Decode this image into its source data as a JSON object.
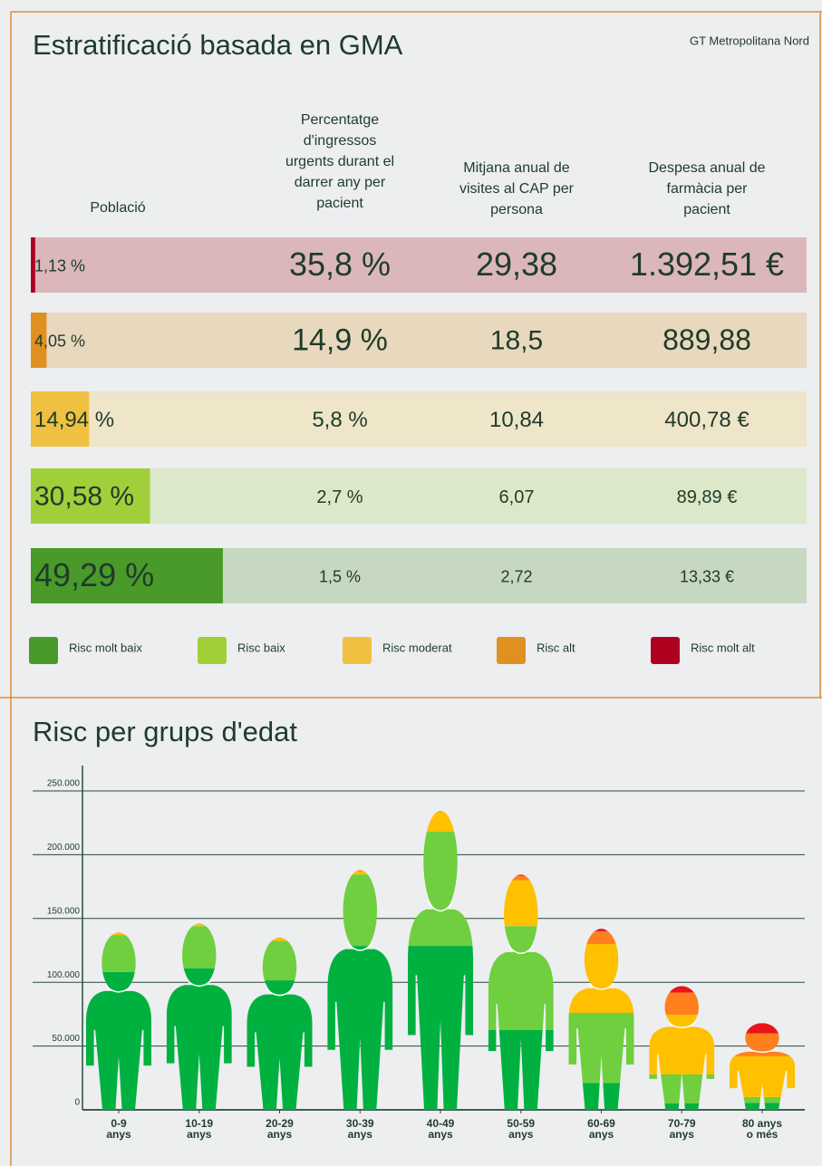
{
  "stratification": {
    "title": "Estratificació basada en GMA",
    "region": "GT Metropolitana Nord",
    "headers": {
      "population": [
        "Població"
      ],
      "urgent": [
        "Percentatge",
        "d'ingressos",
        "urgents durant el",
        "darrer any per",
        "pacient"
      ],
      "visits": [
        "Mitjana anual de",
        "visites al CAP per",
        "persona"
      ],
      "pharmacy": [
        "Despesa anual de",
        "farmàcia per",
        "pacient"
      ]
    },
    "rows": [
      {
        "population": {
          "value": 1.13,
          "label": "1,13 %"
        },
        "color": "#b00020",
        "background": "#dbb7bc",
        "urgent": "35,8 %",
        "visits": "29,38",
        "pharmacy": "1.392,51 €"
      },
      {
        "population": {
          "value": 4.05,
          "label": "4,05 %"
        },
        "color": "#e09020",
        "background": "#e8d8bd",
        "urgent": "14,9 %",
        "visits": "18,5",
        "pharmacy": "889,88"
      },
      {
        "population": {
          "value": 14.94,
          "label": "14,94 %"
        },
        "color": "#f0c040",
        "background": "#efe5c8",
        "urgent": "5,8 %",
        "visits": "10,84",
        "pharmacy": "400,78 €"
      },
      {
        "population": {
          "value": 30.58,
          "label": "30,58 %"
        },
        "color": "#a0cf3a",
        "background": "#dbe8ca",
        "urgent": "2,7 %",
        "visits": "6,07",
        "pharmacy": "89,89 €"
      },
      {
        "population": {
          "value": 49.29,
          "label": "49,29 %"
        },
        "color": "#4a9a2a",
        "background": "#c6d9c0",
        "urgent": "1,5 %",
        "visits": "2,72",
        "pharmacy": "13,33 €"
      }
    ],
    "legend": [
      {
        "name": "Risc molt baix",
        "color": "#4a9a2a"
      },
      {
        "name": "Risc baix",
        "color": "#a0cf3a"
      },
      {
        "name": "Risc moderat",
        "color": "#f0c040"
      },
      {
        "name": "Risc alt",
        "color": "#e09020"
      },
      {
        "name": "Risc molt alt",
        "color": "#b00020"
      }
    ]
  },
  "chart_data": {
    "type": "pictogram_stacked",
    "title": "Risc per grups d'edat",
    "categories": [
      [
        "0-9",
        "anys"
      ],
      [
        "10-19",
        "anys"
      ],
      [
        "20-29",
        "anys"
      ],
      [
        "30-39",
        "anys"
      ],
      [
        "40-49",
        "anys"
      ],
      [
        "50-59",
        "anys"
      ],
      [
        "60-69",
        "anys"
      ],
      [
        "70-79",
        "anys"
      ],
      [
        "80 anys",
        "o més"
      ]
    ],
    "series": [
      {
        "color": "#00b140",
        "values": [
          108000,
          111000,
          101500,
          128500,
          128500,
          62500,
          21000,
          5000,
          5500
        ]
      },
      {
        "color": "#6fcf3f",
        "values": [
          29000,
          33000,
          31000,
          56000,
          89500,
          81500,
          55000,
          22700,
          4500
        ]
      },
      {
        "color": "#ffc000",
        "values": [
          1500,
          1500,
          2000,
          2500,
          16000,
          36000,
          54000,
          46900,
          32000
        ]
      },
      {
        "color": "#ff7f1f",
        "values": [
          500,
          500,
          500,
          1000,
          500,
          3500,
          10000,
          17400,
          18000
        ]
      },
      {
        "color": "#e8141a",
        "values": [
          0,
          0,
          0,
          0,
          0,
          1000,
          2000,
          5000,
          8000
        ]
      }
    ],
    "ylim": [
      0,
      250000
    ],
    "yticks": [
      0,
      {
        "value": 50000,
        "label": "50.000"
      },
      {
        "value": 100000,
        "label": "100.000"
      },
      {
        "value": 150000,
        "label": "150.000"
      },
      {
        "value": 200000,
        "label": "200.000"
      },
      {
        "value": 250000,
        "label": "250.000"
      }
    ],
    "grid": true
  }
}
